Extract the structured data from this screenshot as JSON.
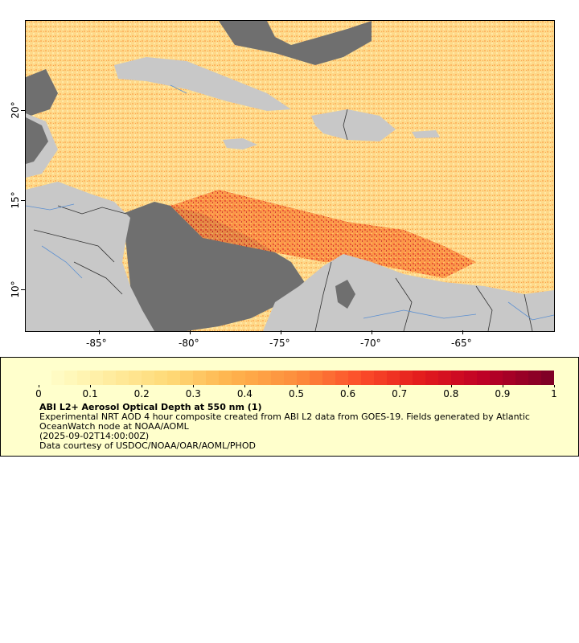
{
  "map": {
    "lon_ticks": [
      "-85°",
      "-80°",
      "-75°",
      "-70°",
      "-65°"
    ],
    "lat_ticks": [
      "20°",
      "15°",
      "10°"
    ],
    "land_color": "#c8c8c8",
    "nodata_color": "#6f6f6f",
    "border_color": "#333333",
    "river_color": "#5b8fd1"
  },
  "legend": {
    "colorbar_labels": [
      "0",
      "0.1",
      "0.2",
      "0.3",
      "0.4",
      "0.5",
      "0.6",
      "0.7",
      "0.8",
      "0.9",
      "1"
    ],
    "colorbar_colors": [
      "#ffffcc",
      "#ffeda0",
      "#fed976",
      "#feb24c",
      "#fd8d3c",
      "#fc4e2a",
      "#e31a1c",
      "#bd0026",
      "#800026"
    ],
    "title": "ABI L2+ Aerosol Optical Depth at 550 nm (1)",
    "line1": "Experimental NRT AOD 4 hour composite created from ABI L2 data from GOES-19. Fields generated by Atlantic OceanWatch node at NOAA/AOML",
    "line2": "(2025-09-02T14:00:00Z)",
    "line3": "Data courtesy of USDOC/NOAA/OAR/AOML/PHOD"
  }
}
